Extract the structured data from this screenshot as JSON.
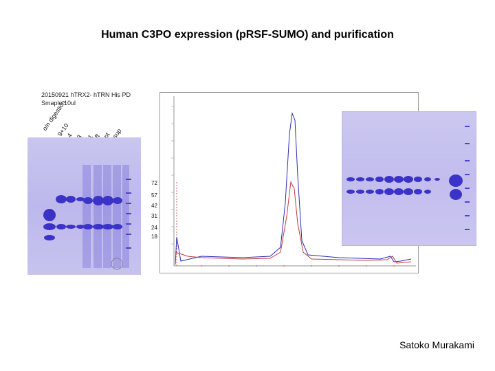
{
  "slide": {
    "title": "Human C3PO expression (pRSF-SUMO) and purification",
    "author": "Satoko Murakami"
  },
  "gel1": {
    "caption_line1": "20150921 hTRX2- hTRN His PD",
    "caption_line2": "Smaple 10ul",
    "lanes": [
      "o/n digestion",
      "9+10",
      "4",
      "3",
      "1",
      "ft",
      "pt",
      "sup"
    ],
    "mw_markers": [
      "72",
      "57",
      "42",
      "31",
      "24",
      "18"
    ]
  },
  "colors": {
    "gel_band": "#3b33c8",
    "chrom_blue": "#2b2bb3",
    "chrom_red": "#c0393b"
  }
}
